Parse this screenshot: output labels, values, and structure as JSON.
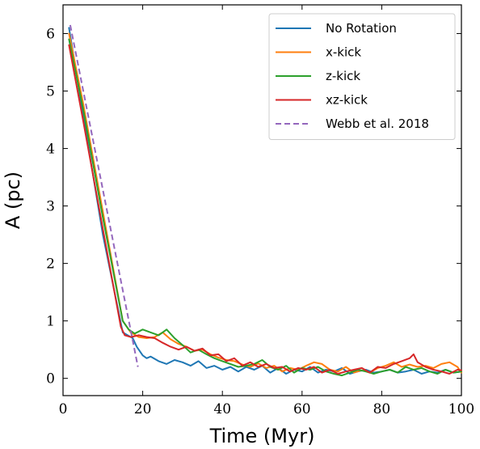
{
  "chart_data": {
    "type": "line",
    "title": "",
    "xlabel": "Time (Myr)",
    "ylabel": "A (pc)",
    "xlim": [
      0,
      100
    ],
    "ylim": [
      -0.3,
      6.5
    ],
    "xticks": [
      0,
      20,
      40,
      60,
      80,
      100
    ],
    "yticks": [
      0,
      1,
      2,
      3,
      4,
      5,
      6
    ],
    "grid": false,
    "legend_placement": "top-right",
    "series": [
      {
        "name": "No Rotation",
        "color": "#1f77b4",
        "dash": "solid",
        "x": [
          1.5,
          5,
          10,
          15,
          17.5,
          18.5,
          20,
          21,
          22,
          24,
          26,
          28,
          30,
          32,
          34,
          36,
          38,
          40,
          42,
          44,
          46,
          48,
          50,
          52,
          54,
          56,
          58,
          60,
          62,
          64,
          66,
          68,
          70,
          72,
          74,
          76,
          78,
          80,
          82,
          84,
          86,
          88,
          90,
          92,
          94,
          96,
          98,
          100
        ],
        "y": [
          6.1,
          4.6,
          2.5,
          0.8,
          0.7,
          0.55,
          0.4,
          0.35,
          0.38,
          0.3,
          0.25,
          0.32,
          0.28,
          0.22,
          0.3,
          0.18,
          0.22,
          0.15,
          0.2,
          0.12,
          0.2,
          0.15,
          0.22,
          0.1,
          0.18,
          0.08,
          0.15,
          0.12,
          0.2,
          0.1,
          0.15,
          0.12,
          0.18,
          0.08,
          0.12,
          0.15,
          0.1,
          0.12,
          0.15,
          0.1,
          0.12,
          0.15,
          0.08,
          0.12,
          0.1,
          0.15,
          0.1,
          0.12
        ]
      },
      {
        "name": "x-kick",
        "color": "#ff7f0e",
        "dash": "solid",
        "x": [
          1.5,
          5,
          10,
          15,
          17,
          19,
          21,
          23,
          25,
          27,
          29,
          31,
          33,
          35,
          37,
          39,
          41,
          43,
          45,
          47,
          49,
          51,
          53,
          55,
          57,
          59,
          61,
          63,
          65,
          67,
          69,
          71,
          73,
          75,
          77,
          79,
          81,
          83,
          85,
          87,
          89,
          91,
          93,
          95,
          97,
          99,
          100
        ],
        "y": [
          6.0,
          4.8,
          2.9,
          1.0,
          0.8,
          0.72,
          0.7,
          0.72,
          0.8,
          0.68,
          0.6,
          0.55,
          0.48,
          0.5,
          0.42,
          0.36,
          0.32,
          0.3,
          0.24,
          0.2,
          0.26,
          0.18,
          0.22,
          0.12,
          0.18,
          0.15,
          0.22,
          0.28,
          0.25,
          0.15,
          0.12,
          0.2,
          0.1,
          0.14,
          0.1,
          0.18,
          0.22,
          0.28,
          0.2,
          0.24,
          0.2,
          0.22,
          0.18,
          0.25,
          0.28,
          0.2,
          0.1
        ]
      },
      {
        "name": "z-kick",
        "color": "#2ca02c",
        "dash": "solid",
        "x": [
          1.5,
          5,
          10,
          15,
          16.5,
          18,
          20,
          22,
          24,
          26,
          28,
          30,
          32,
          34,
          36,
          38,
          40,
          42,
          44,
          46,
          48,
          50,
          52,
          54,
          56,
          58,
          60,
          62,
          64,
          66,
          68,
          70,
          72,
          74,
          76,
          78,
          80,
          82,
          84,
          86,
          88,
          90,
          92,
          94,
          96,
          98,
          100
        ],
        "y": [
          5.9,
          4.7,
          2.8,
          1.0,
          0.85,
          0.78,
          0.85,
          0.8,
          0.75,
          0.85,
          0.7,
          0.58,
          0.45,
          0.5,
          0.42,
          0.35,
          0.3,
          0.25,
          0.2,
          0.22,
          0.25,
          0.32,
          0.2,
          0.15,
          0.22,
          0.1,
          0.18,
          0.15,
          0.2,
          0.12,
          0.08,
          0.05,
          0.1,
          0.15,
          0.12,
          0.08,
          0.12,
          0.15,
          0.1,
          0.2,
          0.15,
          0.18,
          0.12,
          0.08,
          0.15,
          0.1,
          0.12
        ]
      },
      {
        "name": "xz-kick",
        "color": "#d62728",
        "dash": "solid",
        "x": [
          1.5,
          5,
          10,
          14.5,
          15.5,
          17,
          19,
          21,
          23,
          25,
          27,
          29,
          31,
          33,
          35,
          37,
          39,
          41,
          43,
          45,
          47,
          49,
          51,
          53,
          55,
          57,
          59,
          61,
          63,
          65,
          67,
          69,
          71,
          73,
          75,
          77,
          79,
          81,
          83,
          85,
          87,
          88,
          89,
          91,
          93,
          95,
          97,
          99,
          100
        ],
        "y": [
          5.8,
          4.5,
          2.6,
          0.9,
          0.75,
          0.72,
          0.75,
          0.72,
          0.7,
          0.62,
          0.55,
          0.5,
          0.55,
          0.48,
          0.52,
          0.4,
          0.42,
          0.3,
          0.35,
          0.22,
          0.28,
          0.2,
          0.25,
          0.18,
          0.2,
          0.12,
          0.18,
          0.15,
          0.2,
          0.1,
          0.15,
          0.08,
          0.12,
          0.15,
          0.18,
          0.1,
          0.2,
          0.18,
          0.25,
          0.3,
          0.35,
          0.42,
          0.28,
          0.2,
          0.15,
          0.12,
          0.08,
          0.15,
          0.14
        ]
      },
      {
        "name": "Webb et al. 2018",
        "color": "#9467bd",
        "dash": "dashed",
        "x": [
          1.8,
          18.8
        ],
        "y": [
          6.15,
          0.2
        ]
      }
    ]
  }
}
